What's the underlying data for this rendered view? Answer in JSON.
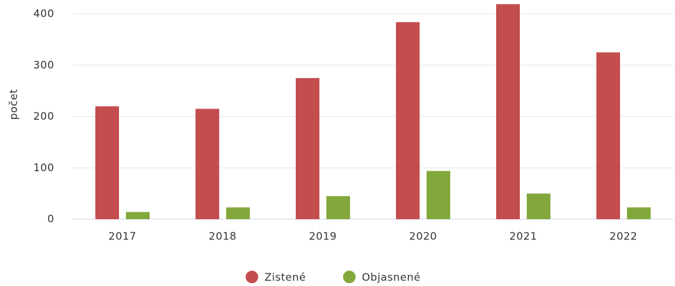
{
  "chart_data": {
    "type": "bar",
    "y_label": "počet",
    "categories": [
      "2017",
      "2018",
      "2019",
      "2020",
      "2021",
      "2022"
    ],
    "series": [
      {
        "name": "Zistené",
        "color": "#c44d4d",
        "values": [
          220,
          215,
          275,
          384,
          419,
          325
        ]
      },
      {
        "name": "Objasnené",
        "color": "#82a83c",
        "values": [
          14,
          23,
          45,
          94,
          50,
          23
        ]
      }
    ],
    "ylim": [
      0,
      420
    ],
    "yticks": [
      0,
      100,
      200,
      300,
      400
    ],
    "grid": true,
    "legend": "bottom"
  }
}
